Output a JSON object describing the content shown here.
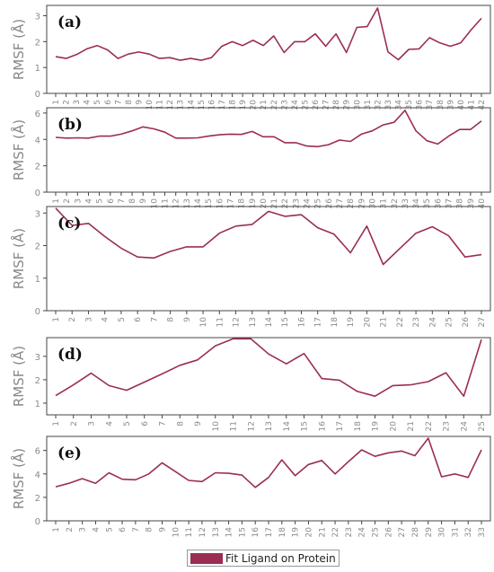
{
  "colors": {
    "series": "#9b2d55",
    "axis": "#444444",
    "tick_label": "#8a8a8a",
    "ylabel": "#888888"
  },
  "legend": {
    "label": "Fit Ligand on Protein",
    "placement": "bottom-center"
  },
  "chart_data": [
    {
      "type": "line",
      "panel_label": "(a)",
      "ylabel": "RMSF (Å)",
      "ylim": [
        0,
        3.4
      ],
      "yticks": [
        0,
        1,
        2,
        3
      ],
      "categories": [
        "1",
        "2",
        "3",
        "4",
        "5",
        "6",
        "7",
        "8",
        "9",
        "10",
        "11",
        "12",
        "13",
        "14",
        "15",
        "16",
        "17",
        "18",
        "19",
        "20",
        "21",
        "22",
        "23",
        "24",
        "25",
        "26",
        "27",
        "28",
        "29",
        "30",
        "31",
        "32",
        "33",
        "34",
        "35",
        "36",
        "37",
        "38",
        "39",
        "40",
        "41",
        "42"
      ],
      "series": [
        {
          "name": "Fit Ligand on Protein",
          "values": [
            1.42,
            1.35,
            1.5,
            1.72,
            1.85,
            1.68,
            1.35,
            1.52,
            1.6,
            1.52,
            1.35,
            1.38,
            1.28,
            1.35,
            1.28,
            1.38,
            1.82,
            2.0,
            1.85,
            2.05,
            1.85,
            2.22,
            1.58,
            2.0,
            2.0,
            2.3,
            1.82,
            2.3,
            1.58,
            2.55,
            2.58,
            3.3,
            1.6,
            1.3,
            1.7,
            1.72,
            2.15,
            1.95,
            1.82,
            1.95,
            2.45,
            2.9
          ]
        }
      ]
    },
    {
      "type": "line",
      "panel_label": "(b)",
      "ylabel": "RMSF (Å)",
      "ylim": [
        0,
        6.4
      ],
      "yticks": [
        0,
        2,
        4,
        6
      ],
      "categories": [
        "1",
        "2",
        "3",
        "4",
        "5",
        "6",
        "7",
        "8",
        "9",
        "10",
        "11",
        "12",
        "13",
        "14",
        "15",
        "16",
        "17",
        "18",
        "19",
        "20",
        "21",
        "22",
        "23",
        "24",
        "25",
        "26",
        "27",
        "28",
        "29",
        "30",
        "31",
        "32",
        "33",
        "34",
        "35",
        "36",
        "37",
        "38",
        "39",
        "40"
      ],
      "series": [
        {
          "name": "Fit Ligand on Protein",
          "values": [
            4.15,
            4.1,
            4.12,
            4.1,
            4.25,
            4.25,
            4.4,
            4.65,
            4.95,
            4.8,
            4.55,
            4.1,
            4.1,
            4.12,
            4.25,
            4.35,
            4.4,
            4.38,
            4.6,
            4.2,
            4.2,
            3.75,
            3.75,
            3.5,
            3.45,
            3.6,
            3.95,
            3.85,
            4.4,
            4.65,
            5.1,
            5.3,
            6.2,
            4.65,
            3.9,
            3.65,
            4.25,
            4.75,
            4.75,
            5.4
          ]
        }
      ]
    },
    {
      "type": "line",
      "panel_label": "(c)",
      "ylabel": "RMSF (Å)",
      "ylim": [
        0,
        3.2
      ],
      "yticks": [
        0,
        1,
        2,
        3
      ],
      "categories": [
        "1",
        "2",
        "3",
        "4",
        "5",
        "6",
        "7",
        "8",
        "9",
        "10",
        "11",
        "12",
        "13",
        "14",
        "15",
        "16",
        "17",
        "18",
        "19",
        "20",
        "21",
        "22",
        "23",
        "24",
        "25",
        "26",
        "27"
      ],
      "series": [
        {
          "name": "Fit Ligand on Protein",
          "values": [
            3.15,
            2.62,
            2.68,
            2.28,
            1.92,
            1.65,
            1.62,
            1.82,
            1.96,
            1.96,
            2.38,
            2.6,
            2.65,
            3.05,
            2.9,
            2.95,
            2.55,
            2.35,
            1.78,
            2.6,
            1.42,
            1.9,
            2.38,
            2.58,
            2.3,
            1.65,
            1.72
          ]
        }
      ]
    },
    {
      "type": "line",
      "panel_label": "(d)",
      "ylabel": "RMSF (Å)",
      "ylim": [
        0.5,
        3.8
      ],
      "yticks": [
        1,
        2,
        3
      ],
      "categories": [
        "1",
        "2",
        "3",
        "4",
        "5",
        "6",
        "7",
        "8",
        "9",
        "10",
        "11",
        "12",
        "13",
        "14",
        "15",
        "16",
        "17",
        "18",
        "19",
        "20",
        "21",
        "22",
        "23",
        "24",
        "25"
      ],
      "series": [
        {
          "name": "Fit Ligand on Protein",
          "values": [
            1.32,
            1.78,
            2.28,
            1.75,
            1.55,
            1.9,
            2.25,
            2.62,
            2.85,
            3.45,
            3.75,
            3.75,
            3.1,
            2.68,
            3.12,
            2.05,
            1.98,
            1.5,
            1.3,
            1.75,
            1.78,
            1.92,
            2.3,
            1.3,
            3.72
          ]
        }
      ]
    },
    {
      "type": "line",
      "panel_label": "(e)",
      "ylabel": "RMSF (Å)",
      "ylim": [
        0,
        7.2
      ],
      "yticks": [
        0,
        2,
        4,
        6
      ],
      "categories": [
        "1",
        "2",
        "3",
        "4",
        "5",
        "6",
        "7",
        "8",
        "9",
        "10",
        "11",
        "12",
        "13",
        "14",
        "15",
        "16",
        "17",
        "18",
        "19",
        "20",
        "21",
        "22",
        "23",
        "24",
        "25",
        "26",
        "27",
        "28",
        "29",
        "30",
        "31",
        "32",
        "33"
      ],
      "series": [
        {
          "name": "Fit Ligand on Protein",
          "values": [
            2.9,
            3.2,
            3.6,
            3.2,
            4.1,
            3.55,
            3.5,
            4.0,
            4.95,
            4.2,
            3.45,
            3.35,
            4.1,
            4.05,
            3.9,
            2.85,
            3.7,
            5.2,
            3.85,
            4.8,
            5.15,
            4.0,
            5.05,
            6.05,
            5.5,
            5.8,
            5.95,
            5.55,
            7.05,
            3.75,
            4.0,
            3.7,
            6.05
          ]
        }
      ]
    }
  ]
}
